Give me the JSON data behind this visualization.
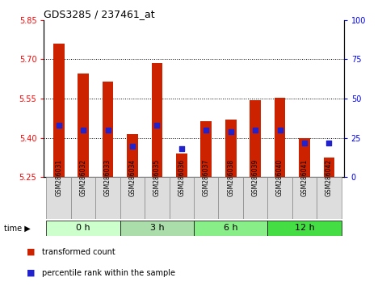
{
  "title": "GDS3285 / 237461_at",
  "samples": [
    "GSM286031",
    "GSM286032",
    "GSM286033",
    "GSM286034",
    "GSM286035",
    "GSM286036",
    "GSM286037",
    "GSM286038",
    "GSM286039",
    "GSM286040",
    "GSM286041",
    "GSM286042"
  ],
  "transformed_count": [
    5.76,
    5.645,
    5.615,
    5.415,
    5.685,
    5.34,
    5.465,
    5.47,
    5.545,
    5.555,
    5.4,
    5.325
  ],
  "percentile_rank": [
    33,
    30,
    30,
    20,
    33,
    18,
    30,
    29,
    30,
    30,
    22,
    22
  ],
  "base_value": 5.25,
  "ylim_left": [
    5.25,
    5.85
  ],
  "ylim_right": [
    0,
    100
  ],
  "yticks_left": [
    5.25,
    5.4,
    5.55,
    5.7,
    5.85
  ],
  "yticks_right": [
    0,
    25,
    50,
    75,
    100
  ],
  "bar_color": "#CC2200",
  "dot_color": "#2222CC",
  "group_data": [
    {
      "label": "0 h",
      "start": 0,
      "end": 3
    },
    {
      "label": "3 h",
      "start": 3,
      "end": 6
    },
    {
      "label": "6 h",
      "start": 6,
      "end": 9
    },
    {
      "label": "12 h",
      "start": 9,
      "end": 12
    }
  ],
  "group_colors": [
    "#CCFFCC",
    "#AADDAA",
    "#88EE88",
    "#44DD44"
  ],
  "legend_bar_label": "transformed count",
  "legend_dot_label": "percentile rank within the sample",
  "bar_width": 0.45,
  "xlabel_label": "time"
}
